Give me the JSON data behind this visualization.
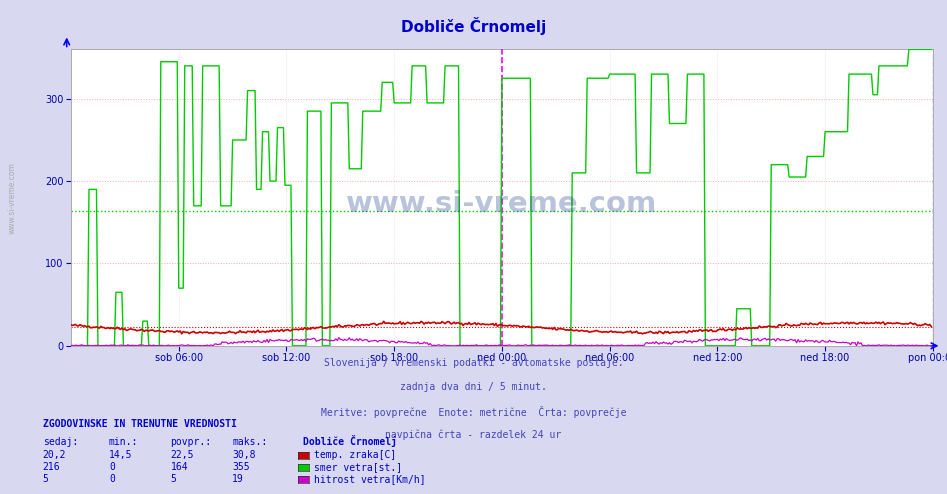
{
  "title": "Dobliče Črnomelj",
  "title_color": "#0000cc",
  "bg_color": "#d8d8f0",
  "plot_bg_color": "#ffffff",
  "ylim": [
    0,
    360
  ],
  "yticks": [
    0,
    100,
    200,
    300
  ],
  "x_labels": [
    "sob 06:00",
    "sob 12:00",
    "sob 18:00",
    "ned 00:00",
    "ned 06:00",
    "ned 12:00",
    "ned 18:00",
    "pon 00:00"
  ],
  "x_tick_positions": [
    72,
    144,
    216,
    288,
    360,
    432,
    504,
    576
  ],
  "total_points": 576,
  "avg_temp": 22.5,
  "avg_wind_dir": 164,
  "info_lines": [
    "Slovenija / vremenski podatki - avtomatske postaje.",
    "zadnja dva dni / 5 minut.",
    "Meritve: povprečne  Enote: metrične  Črta: povprečje",
    "navpična črta - razdelek 24 ur"
  ],
  "legend_title": "Dobliče Črnomelj",
  "legend_rows": [
    {
      "sedaj": "20,2",
      "min": "14,5",
      "povpr": "22,5",
      "maks": "30,8",
      "label": "temp. zraka[C]",
      "color": "#cc0000"
    },
    {
      "sedaj": "216",
      "min": "0",
      "povpr": "164",
      "maks": "355",
      "label": "smer vetra[st.]",
      "color": "#00cc00"
    },
    {
      "sedaj": "5",
      "min": "0",
      "povpr": "5",
      "maks": "19",
      "label": "hitrost vetra[Km/h]",
      "color": "#cc00cc"
    }
  ],
  "grid_color_h": "#ffaaaa",
  "grid_color_v": "#ffcccc",
  "avg_line_green": "#00cc00",
  "avg_line_red": "#cc0000",
  "vert_line_magenta": "#ff00ff",
  "vert_line_blue": "#8888cc",
  "watermark": "www.si-vreme.com",
  "watermark_color": "#1a3a8a",
  "watermark_alpha": 0.3,
  "sidebar_text": "www.si-vreme.com",
  "sidebar_color": "#aaaaaa"
}
